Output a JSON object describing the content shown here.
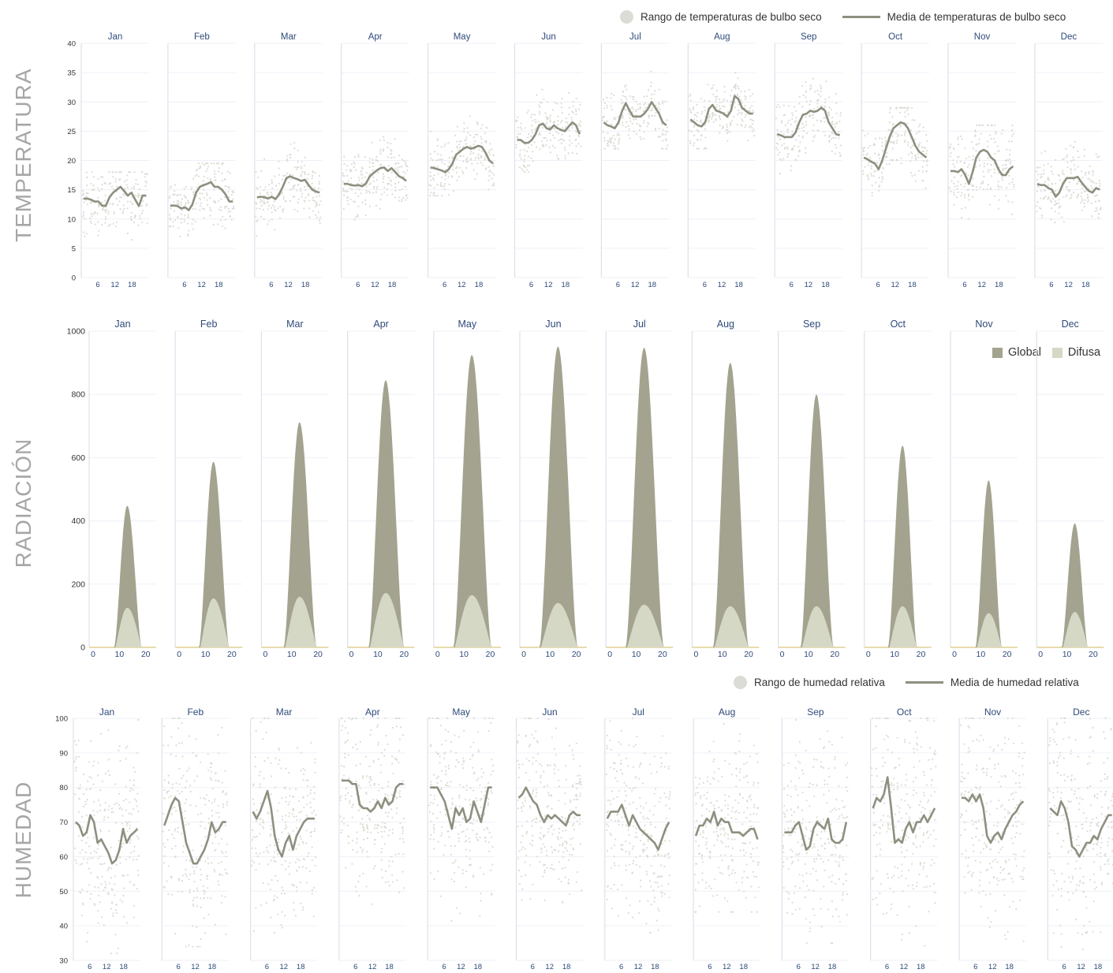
{
  "row_labels": {
    "temperature": "TEMPERATURA",
    "radiation": "RADIACIÓN",
    "humidity": "HUMEDAD"
  },
  "legends": {
    "temperature": {
      "range": "Rango de temperaturas de bulbo seco",
      "mean": "Media de temperaturas de bulbo seco"
    },
    "radiation": {
      "global": "Global",
      "diffuse": "Difusa"
    },
    "humidity": {
      "range": "Rango de humedad relativa",
      "mean": "Media de humedad relativa"
    }
  },
  "colors": {
    "range": "#dcdcd6",
    "mean": "#8f8f80",
    "global": "#a3a38f",
    "diffuse": "#d6d8c6",
    "axis": "#2f4a7a",
    "grid": "#eef0f6",
    "label": "#a6a6a6"
  },
  "chart_data": [
    {
      "type": "line",
      "panel": "temperature",
      "months": [
        "Jan",
        "Feb",
        "Mar",
        "Apr",
        "May",
        "Jun",
        "Jul",
        "Aug",
        "Sep",
        "Oct",
        "Nov",
        "Dec"
      ],
      "x_ticks": [
        6,
        12,
        18
      ],
      "y_ticks": [
        0,
        5,
        10,
        15,
        20,
        25,
        30,
        35,
        40
      ],
      "ylim": [
        0,
        40
      ],
      "series": [
        {
          "name": "Media de temperaturas de bulbo seco",
          "values": [
            [
              13.5,
              13.5,
              13.3,
              13.0,
              13.0,
              12.3,
              12.2,
              13.7,
              14.5,
              15.0,
              15.5,
              14.8,
              14.0,
              14.5,
              13.3,
              12.2,
              14.0,
              14.0
            ],
            [
              12.3,
              12.3,
              12.2,
              11.8,
              12.0,
              11.5,
              12.5,
              14.5,
              15.5,
              15.8,
              16.0,
              16.3,
              15.5,
              15.5,
              15.0,
              14.2,
              13.0,
              13.0
            ],
            [
              13.7,
              13.8,
              13.7,
              13.5,
              13.8,
              13.4,
              14.2,
              15.5,
              17.0,
              17.3,
              17.0,
              16.8,
              16.5,
              16.7,
              15.8,
              15.0,
              14.7,
              14.5
            ],
            [
              16.0,
              16.0,
              15.8,
              15.7,
              15.8,
              15.6,
              16.0,
              17.2,
              17.8,
              18.3,
              18.7,
              18.8,
              18.2,
              18.7,
              18.0,
              17.3,
              17.0,
              16.5
            ],
            [
              18.8,
              18.7,
              18.5,
              18.3,
              18.0,
              18.5,
              19.5,
              21.0,
              21.5,
              22.0,
              22.3,
              22.0,
              22.2,
              22.5,
              22.3,
              21.3,
              20.0,
              19.5
            ],
            [
              23.5,
              23.5,
              23.0,
              23.0,
              23.5,
              24.5,
              26.0,
              26.3,
              25.5,
              25.3,
              26.0,
              25.5,
              25.2,
              25.0,
              25.8,
              26.5,
              26.0,
              24.5
            ],
            [
              26.5,
              26.0,
              25.8,
              25.5,
              26.5,
              28.5,
              29.8,
              28.5,
              27.5,
              27.5,
              27.5,
              28.0,
              28.8,
              30.0,
              29.0,
              28.0,
              26.5,
              26.0
            ],
            [
              27.0,
              26.5,
              26.0,
              25.8,
              26.5,
              28.8,
              29.5,
              28.5,
              28.3,
              28.0,
              27.5,
              28.5,
              31.0,
              30.5,
              29.0,
              28.5,
              28.0,
              28.0
            ],
            [
              24.5,
              24.3,
              24.0,
              24.0,
              24.0,
              24.8,
              26.5,
              27.8,
              28.0,
              28.5,
              28.3,
              28.5,
              29.0,
              28.5,
              26.5,
              25.5,
              24.5,
              24.3
            ],
            [
              20.5,
              20.2,
              19.8,
              19.5,
              18.5,
              20.0,
              22.0,
              24.0,
              25.5,
              26.0,
              26.5,
              26.3,
              25.5,
              24.0,
              22.5,
              21.5,
              21.0,
              20.5
            ],
            [
              18.2,
              18.2,
              18.0,
              18.5,
              17.5,
              16.0,
              18.0,
              20.5,
              21.5,
              21.8,
              21.5,
              20.5,
              20.0,
              18.5,
              17.5,
              17.5,
              18.5,
              19.0
            ],
            [
              16.0,
              15.8,
              15.8,
              15.3,
              15.0,
              13.8,
              14.5,
              16.0,
              17.0,
              17.0,
              17.0,
              17.2,
              16.3,
              15.5,
              14.8,
              14.5,
              15.3,
              15.0
            ]
          ]
        },
        {
          "name": "Rango de temperaturas de bulbo seco",
          "ranges": [
            [
              3.5,
              18
            ],
            [
              5,
              19.5
            ],
            [
              6.5,
              23
            ],
            [
              9,
              24
            ],
            [
              14,
              28.5
            ],
            [
              18,
              34
            ],
            [
              22,
              36
            ],
            [
              22,
              35
            ],
            [
              17,
              34
            ],
            [
              13,
              29
            ],
            [
              6,
              26
            ],
            [
              6,
              23.5
            ]
          ]
        }
      ]
    },
    {
      "type": "area",
      "panel": "radiation",
      "months": [
        "Jan",
        "Feb",
        "Mar",
        "Apr",
        "May",
        "Jun",
        "Jul",
        "Aug",
        "Sep",
        "Oct",
        "Nov",
        "Dec"
      ],
      "x_ticks": [
        0,
        10,
        20
      ],
      "y_ticks": [
        0,
        200,
        400,
        600,
        800,
        1000
      ],
      "ylim": [
        0,
        1000
      ],
      "series": [
        {
          "name": "Global",
          "peak": [
            448,
            587,
            712,
            845,
            925,
            952,
            948,
            900,
            800,
            638,
            528,
            392
          ],
          "start_hour": [
            8.0,
            7.5,
            7.0,
            6.5,
            6.0,
            6.0,
            6.0,
            6.5,
            7.0,
            7.5,
            8.0,
            8.0
          ],
          "end_hour": [
            18.5,
            19.0,
            19.5,
            20.0,
            20.5,
            20.5,
            20.5,
            20.0,
            19.5,
            18.5,
            18.0,
            18.0
          ],
          "peak_hour": 13
        },
        {
          "name": "Difusa",
          "peak": [
            125,
            155,
            160,
            172,
            165,
            140,
            135,
            130,
            130,
            130,
            108,
            112
          ],
          "start_hour": [
            8.5,
            8.0,
            7.5,
            7.0,
            6.5,
            6.5,
            6.5,
            7.0,
            7.5,
            8.0,
            8.5,
            8.5
          ],
          "end_hour": [
            18.5,
            19.0,
            19.5,
            20.0,
            20.5,
            20.5,
            20.5,
            20.0,
            19.5,
            18.5,
            18.0,
            18.0
          ],
          "peak_hour": 13
        }
      ]
    },
    {
      "type": "line",
      "panel": "humidity",
      "months": [
        "Jan",
        "Feb",
        "Mar",
        "Apr",
        "May",
        "Jun",
        "Jul",
        "Aug",
        "Sep",
        "Oct",
        "Nov",
        "Dec"
      ],
      "x_ticks": [
        6,
        12,
        18
      ],
      "y_ticks": [
        30,
        40,
        50,
        60,
        70,
        80,
        90,
        100
      ],
      "ylim": [
        30,
        100
      ],
      "series": [
        {
          "name": "Media de humedad relativa",
          "values": [
            [
              70,
              69,
              66,
              67,
              72,
              70,
              64,
              65,
              63,
              61,
              58,
              59,
              62,
              68,
              64,
              66,
              67,
              68
            ],
            [
              69,
              72,
              75,
              77,
              76,
              70,
              64,
              61,
              58,
              58,
              60,
              62,
              65,
              70,
              67,
              68,
              70,
              70
            ],
            [
              73,
              71,
              73,
              76,
              79,
              74,
              66,
              62,
              60,
              64,
              66,
              62,
              66,
              68,
              70,
              71,
              71,
              71
            ],
            [
              82,
              82,
              82,
              81,
              81,
              75,
              74,
              74,
              73,
              74,
              76,
              74,
              77,
              75,
              76,
              80,
              81,
              81
            ],
            [
              80,
              80,
              80,
              78,
              76,
              72,
              68,
              74,
              72,
              74,
              70,
              71,
              76,
              73,
              70,
              75,
              80,
              80
            ],
            [
              77,
              78,
              80,
              78,
              76,
              75,
              72,
              70,
              72,
              71,
              72,
              71,
              70,
              69,
              72,
              73,
              72,
              72
            ],
            [
              71,
              73,
              73,
              73,
              75,
              72,
              69,
              72,
              70,
              68,
              67,
              66,
              65,
              64,
              62,
              65,
              68,
              70
            ],
            [
              66,
              69,
              69,
              71,
              70,
              73,
              69,
              71,
              70,
              70,
              67,
              67,
              67,
              66,
              67,
              68,
              68,
              65
            ],
            [
              67,
              67,
              67,
              69,
              70,
              66,
              62,
              63,
              68,
              70,
              69,
              68,
              71,
              65,
              64,
              64,
              65,
              70
            ],
            [
              74,
              77,
              76,
              78,
              83,
              74,
              64,
              65,
              64,
              68,
              70,
              67,
              70,
              70,
              72,
              70,
              72,
              74
            ],
            [
              77,
              77,
              76,
              78,
              76,
              78,
              74,
              66,
              64,
              66,
              67,
              65,
              68,
              70,
              72,
              73,
              75,
              76
            ],
            [
              74,
              73,
              72,
              76,
              74,
              70,
              63,
              62,
              60,
              62,
              64,
              64,
              66,
              65,
              68,
              70,
              72,
              72
            ]
          ]
        },
        {
          "name": "Rango de humedad relativa",
          "ranges": [
            [
              32,
              100
            ],
            [
              34,
              100
            ],
            [
              38,
              100
            ],
            [
              44,
              100
            ],
            [
              40,
              100
            ],
            [
              42,
              100
            ],
            [
              38,
              100
            ],
            [
              44,
              100
            ],
            [
              35,
              100
            ],
            [
              30,
              100
            ],
            [
              32,
              100
            ],
            [
              30,
              100
            ]
          ]
        }
      ]
    }
  ]
}
